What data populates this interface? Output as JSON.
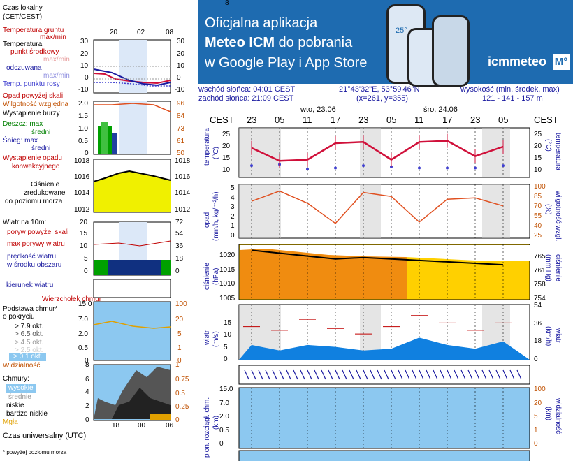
{
  "legend": {
    "time_local": "Czas lokalny",
    "time_local_sub": "(CET/CEST)",
    "time_ticks": [
      "20",
      "02",
      "08"
    ],
    "soil_temp": "Temperatura gruntu",
    "soil_temp_sub": "max/min",
    "temperature": "Temperatura:",
    "mid_point": "punkt środkowy",
    "max_min_1": "max/min",
    "feels": "odczuwana",
    "max_min_2": "max/min",
    "dew_point": "Temp. punktu rosy",
    "temp_left_ticks": [
      "30",
      "20",
      "10",
      "0",
      "-10"
    ],
    "temp_right_ticks": [
      "30",
      "20",
      "10",
      "0",
      "-10"
    ],
    "rain_above": "Opad powyżej skali",
    "humidity": "Wilgotność względna",
    "storm": "Wystąpienie burzy",
    "rain_max": "Deszcz: max",
    "rain_mean": "średni",
    "snow_max": "Śnieg:   max",
    "snow_mean": "średni",
    "conv": "Wystąpienie opadu",
    "conv2": "konwekcyjnego",
    "precip_left_ticks": [
      "2.0",
      "1.5",
      "1.0",
      "0.5",
      "0"
    ],
    "precip_right_ticks": [
      "96",
      "84",
      "73",
      "61",
      "50"
    ],
    "pressure": "Ciśnienie",
    "pressure2": "zredukowane",
    "pressure3": "do poziomu morza",
    "press_left_ticks": [
      "1018",
      "1016",
      "1014",
      "1012"
    ],
    "press_right_ticks": [
      "1018",
      "1016",
      "1014",
      "1012"
    ],
    "wind_at": "Wiatr na 10m:",
    "gust_above": "poryw powyżej skali",
    "gust_max": "max porywy wiatru",
    "wind_speed": "prędkość wiatru",
    "wind_speed2": "w środku obszaru",
    "wind_left_ticks": [
      "20",
      "15",
      "10",
      "5",
      "0"
    ],
    "wind_right_ticks": [
      "72",
      "54",
      "36",
      "18",
      "0"
    ],
    "wind_dir": "kierunek wiatru",
    "cloud_top": "Wierzchołek chmur",
    "cloud_base": "Podstawa chmur*",
    "cloud_base2": "o pokryciu",
    "okt1": "> 7.9 okt.",
    "okt2": "> 6.5 okt.",
    "okt3": "> 4.5 okt.",
    "okt4": "> 2.5 okt.",
    "okt5": "> 0.1 okt.",
    "cloud_left_ticks": [
      "15.0",
      "7.0",
      "2.0",
      "0.5",
      "0"
    ],
    "cloud_right_ticks": [
      "100",
      "20",
      "5",
      "1",
      "0"
    ],
    "visibility": "Widzialność",
    "vis_ticks": [
      "8",
      "6",
      "4",
      "2",
      "0"
    ],
    "vis_right_ticks": [
      "1",
      "0.75",
      "0.5",
      "0.25",
      "0"
    ],
    "clouds": "Chmury:",
    "high": "wysokie",
    "mid": "średnie",
    "low": "niskie",
    "very_low": "bardzo niskie",
    "fog": "Mgła",
    "utc": "Czas uniwersalny (UTC)",
    "utc_ticks": [
      "18",
      "00",
      "06"
    ],
    "footnote": "* powyżej poziomu morza"
  },
  "banner": {
    "line1": "Oficjalna aplikacja",
    "line2a": "Meteo ICM",
    "line2b": " do pobrania",
    "line3": "w Google Play i App Store",
    "logo": "icmmeteo",
    "logo_box": "M°",
    "phone_temp": "25°"
  },
  "info": {
    "sunrise": "wschód słońca: 04:01 CEST",
    "sunset": "zachód słońca: 21:09 CEST",
    "coords": "21°43'32\"E, 53°59'46\"N",
    "grid": "(x=261, y=355)",
    "alt_label": "wysokość (min, środek, max)",
    "alt_values": "121 - 141 - 157 m"
  },
  "timeline": {
    "tz": "CEST",
    "day1": "wto, 23.06",
    "day2": "śro, 24.06",
    "hours": [
      "23",
      "05",
      "11",
      "17",
      "23",
      "05",
      "11",
      "17",
      "23",
      "05"
    ]
  },
  "panels": {
    "temp_label": "temperatura",
    "temp_unit": "(°C)",
    "temp_ticks": [
      "25",
      "20",
      "15",
      "10"
    ],
    "precip_label": "opad",
    "precip_unit": "(mm/h, kg/m²/h)",
    "precip_left_ticks": [
      "5",
      "4",
      "3",
      "2",
      "1",
      "0"
    ],
    "hum_label": "wilgotność wzgl.",
    "hum_unit": "(%)",
    "hum_ticks": [
      "100",
      "85",
      "70",
      "55",
      "40",
      "25"
    ],
    "press_label": "ciśnienie",
    "press_unit": "(hPa)",
    "press_ticks": [
      "1020",
      "1015",
      "1010",
      "1005"
    ],
    "press_mm_unit": "(mm Hg)",
    "press_mm_ticks": [
      "765",
      "761",
      "758",
      "754"
    ],
    "wind_label": "wiatr",
    "wind_unit": "(m/s)",
    "wind_ticks": [
      "15",
      "10",
      "5",
      "0"
    ],
    "wind_kmh_unit": "(km/h)",
    "wind_kmh_ticks": [
      "54",
      "36",
      "18",
      "0"
    ],
    "cloud_label": "pion. rozciągł. chm.",
    "cloud_unit": "(km)",
    "cloud_ticks": [
      "15.0",
      "7.0",
      "2.0",
      "0.5",
      "0"
    ],
    "vis_label": "widzialność",
    "vis_unit": "(km)",
    "vis_ticks": [
      "100",
      "20",
      "5",
      "1",
      "0"
    ],
    "bottom_tick": "8"
  },
  "colors": {
    "temp_line": "#d0103a",
    "dew_dots": "#4040d0",
    "humidity_line": "#e05020",
    "pressure_fill_left": "#f08c10",
    "pressure_fill_right": "#ffd000",
    "small_pressure_fill": "#f0f000",
    "wind_fill": "#1080e0",
    "wind_dark": "#103080",
    "cloud_bg": "#8cc8f0",
    "banner": "#1e6bb0"
  },
  "chart_data": [
    {
      "type": "line",
      "title": "temperatura",
      "ylabel": "(°C)",
      "ylim": [
        7,
        28
      ],
      "x": [
        "23",
        "05",
        "11",
        "17",
        "23",
        "05",
        "11",
        "17",
        "23",
        "05"
      ],
      "series": [
        {
          "name": "temperatura",
          "values": [
            19.5,
            14,
            14.5,
            21.5,
            22,
            14.5,
            22,
            22.5,
            16,
            20
          ]
        },
        {
          "name": "Temp. punktu rosy",
          "values": [
            12,
            12.5,
            10.5,
            11,
            12,
            11.5,
            11,
            11,
            11,
            12
          ]
        }
      ]
    },
    {
      "type": "line",
      "title": "opad / wilgotność wzgl.",
      "ylabel": "(%)",
      "ylim": [
        20,
        100
      ],
      "x": [
        "23",
        "05",
        "11",
        "17",
        "23",
        "05",
        "11",
        "17",
        "23",
        "05"
      ],
      "series": [
        {
          "name": "wilgotność wzgl.",
          "values": [
            75,
            90,
            72,
            42,
            88,
            82,
            44,
            78,
            80,
            68
          ]
        }
      ]
    },
    {
      "type": "area",
      "title": "ciśnienie",
      "ylabel": "(hPa)",
      "ylim": [
        1005,
        1024
      ],
      "x": [
        "23",
        "05",
        "11",
        "17",
        "23",
        "05",
        "11",
        "17",
        "23",
        "05"
      ],
      "series": [
        {
          "name": "ciśnienie",
          "values": [
            1022,
            1021,
            1020,
            1019,
            1019.5,
            1019,
            1018.5,
            1018,
            1017.5,
            1017
          ]
        }
      ]
    },
    {
      "type": "area",
      "title": "wiatr",
      "ylabel": "(m/s)",
      "ylim": [
        0,
        15
      ],
      "x": [
        "23",
        "05",
        "11",
        "17",
        "23",
        "05",
        "11",
        "17",
        "23",
        "05"
      ],
      "series": [
        {
          "name": "prędkość wiatru",
          "values": [
            4,
            2.5,
            4,
            3.5,
            2.5,
            3,
            6,
            4,
            3,
            5
          ]
        },
        {
          "name": "max porywy wiatru",
          "values": [
            9,
            8,
            11,
            8.5,
            7,
            9,
            12,
            10,
            8,
            10
          ]
        }
      ]
    }
  ]
}
